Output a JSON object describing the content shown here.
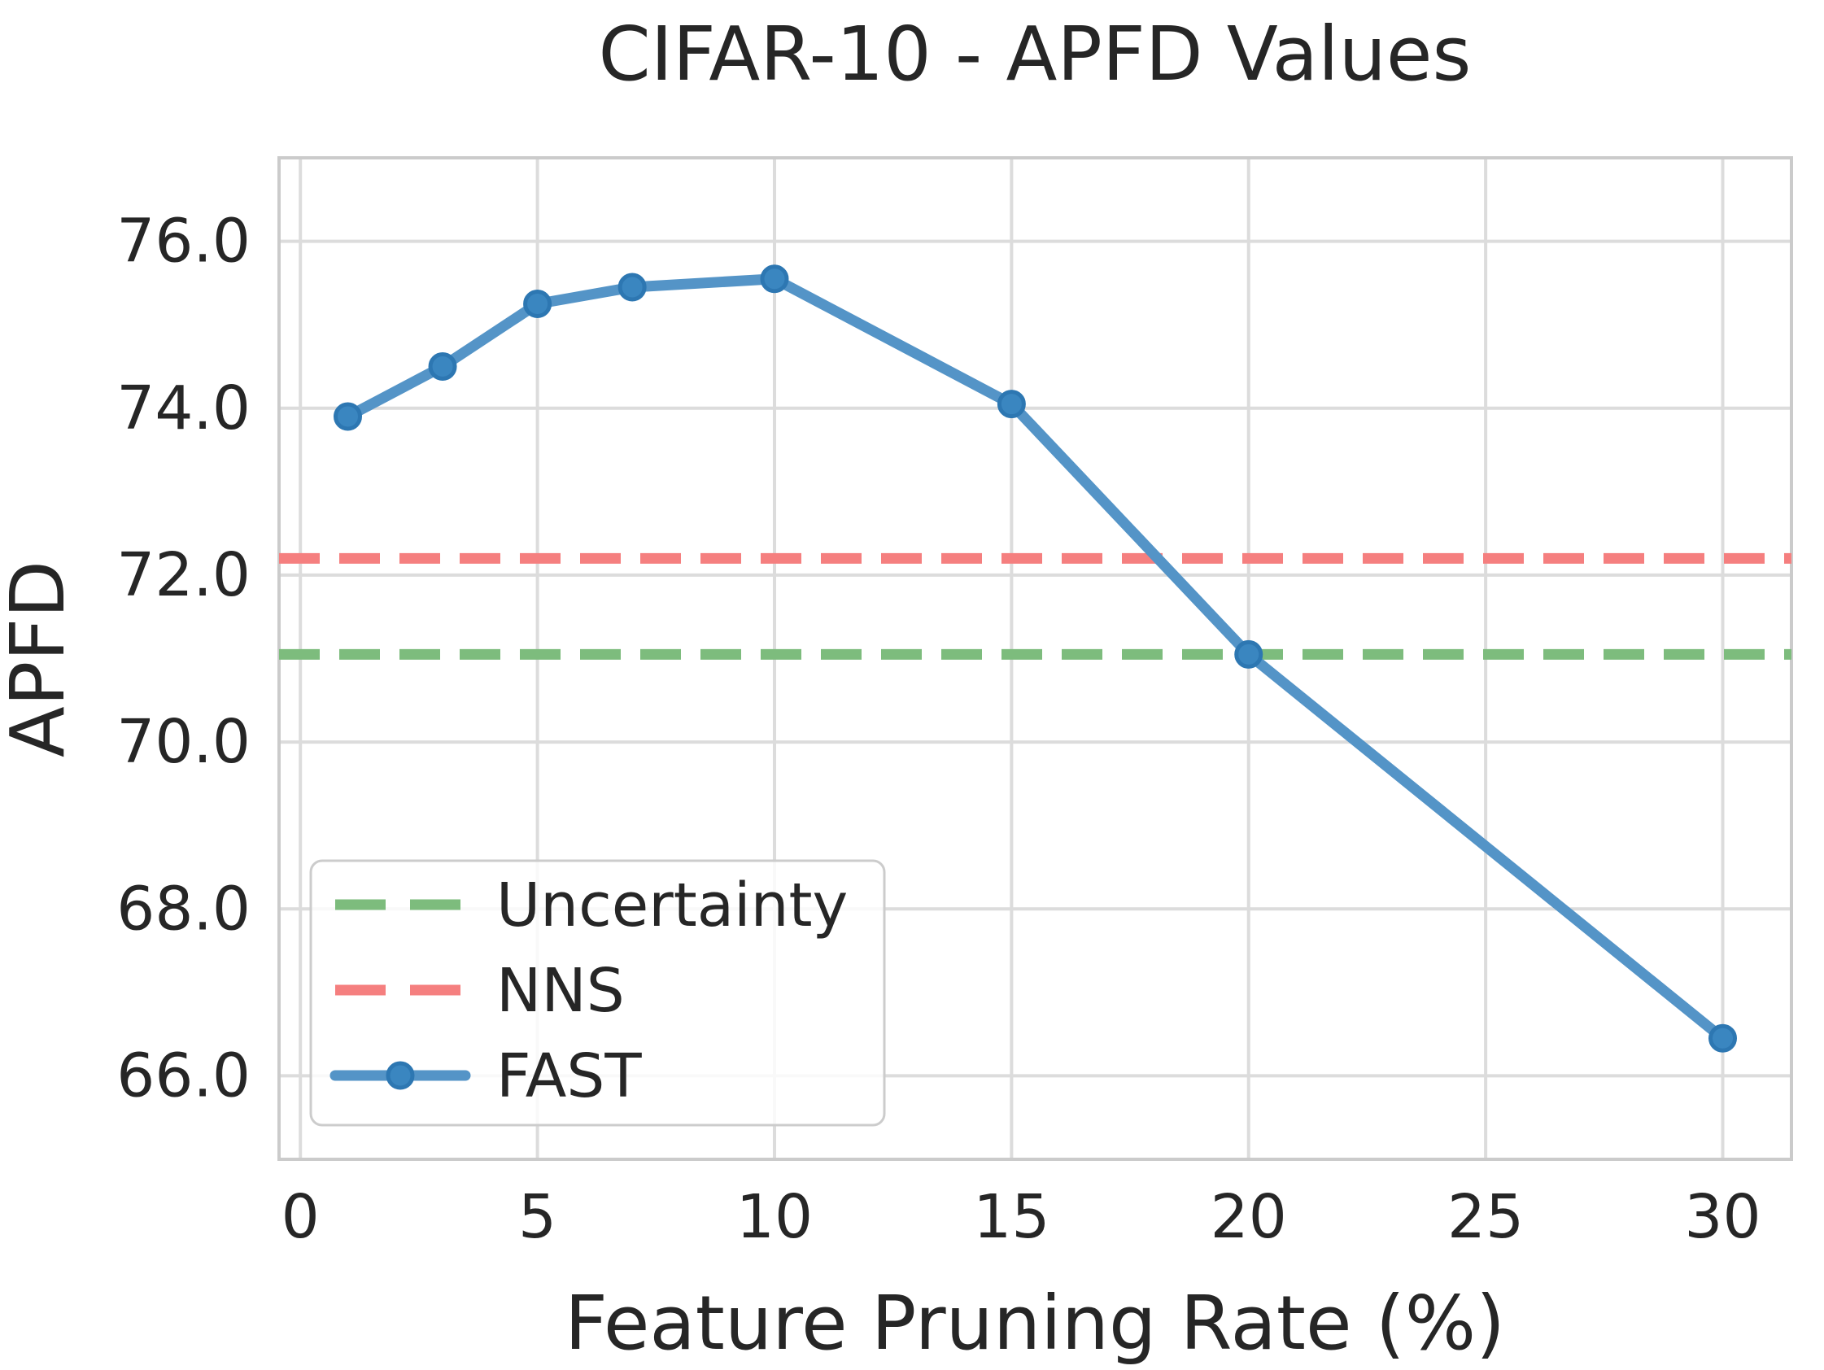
{
  "figure": {
    "background_color": "#ffffff",
    "text_color": "#262626",
    "grid_color": "#dcdcdc",
    "spine_color": "#cbcbcb"
  },
  "chart_data": {
    "type": "line",
    "title": "CIFAR-10 - APFD Values",
    "xlabel": "Feature Pruning Rate (%)",
    "ylabel": "APFD",
    "xlim": [
      -0.45,
      31.45
    ],
    "ylim": [
      65.0,
      77.0
    ],
    "grid": true,
    "x_ticks": {
      "values": [
        0,
        5,
        10,
        15,
        20,
        25,
        30
      ],
      "labels": [
        "0",
        "5",
        "10",
        "15",
        "20",
        "25",
        "30"
      ]
    },
    "y_ticks": {
      "values": [
        66,
        68,
        70,
        72,
        74,
        76
      ],
      "labels": [
        "66.0",
        "68.0",
        "70.0",
        "72.0",
        "74.0",
        "76.0"
      ]
    },
    "legend": {
      "position": "lower-left",
      "entries": [
        "Uncertainty",
        "NNS",
        "FAST"
      ]
    },
    "series": [
      {
        "name": "Uncertainty",
        "kind": "hline",
        "y": 71.05,
        "color": "#7dbc7d",
        "linestyle": "dashed"
      },
      {
        "name": "NNS",
        "kind": "hline",
        "y": 72.2,
        "color": "#f57f7f",
        "linestyle": "dashed"
      },
      {
        "name": "FAST",
        "kind": "line",
        "color": "#5494c7",
        "marker": "circle",
        "marker_fill": "#3a86c0",
        "marker_edge": "#2d77b2",
        "linestyle": "solid",
        "x": [
          1,
          3,
          5,
          7,
          10,
          15,
          20,
          30
        ],
        "y": [
          73.9,
          74.5,
          75.25,
          75.45,
          75.55,
          74.05,
          71.05,
          66.45
        ]
      }
    ]
  }
}
